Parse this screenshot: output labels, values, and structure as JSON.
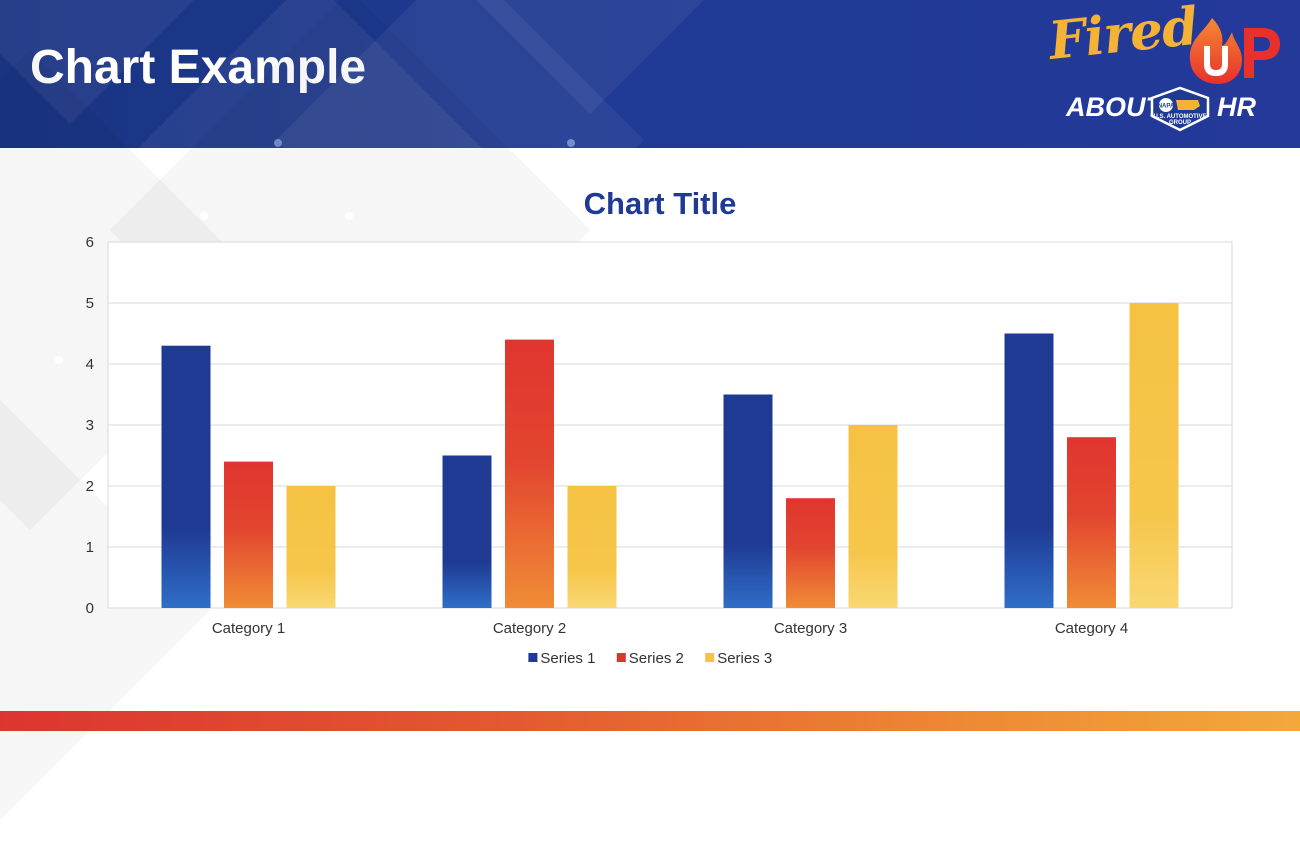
{
  "slide": {
    "title": "Chart Example"
  },
  "logo": {
    "word_fired": "Fired",
    "word_up": "UP",
    "word_about": "ABOUT",
    "word_hr": "HR",
    "badge_text": "U.S. AUTOMOTIVE GROUP",
    "badge_mark": "NAPA"
  },
  "colors": {
    "header_blue": "#1f3a93",
    "series_1": "#1f3a93",
    "series_2": "#e0352f",
    "series_3": "#f5c242",
    "bottom_bar_start": "#dc3530",
    "bottom_bar_end": "#f2a93a"
  },
  "chart_data": {
    "type": "bar",
    "title": "Chart Title",
    "categories": [
      "Category 1",
      "Category 2",
      "Category 3",
      "Category 4"
    ],
    "series": [
      {
        "name": "Series 1",
        "values": [
          4.3,
          2.5,
          3.5,
          4.5
        ]
      },
      {
        "name": "Series 2",
        "values": [
          2.4,
          4.4,
          1.8,
          2.8
        ]
      },
      {
        "name": "Series 3",
        "values": [
          2,
          2,
          3,
          5
        ]
      }
    ],
    "y_ticks": [
      "0",
      "1",
      "2",
      "3",
      "4",
      "5",
      "6"
    ],
    "ylim": [
      0,
      6
    ],
    "grid": true,
    "legend_position": "bottom"
  }
}
